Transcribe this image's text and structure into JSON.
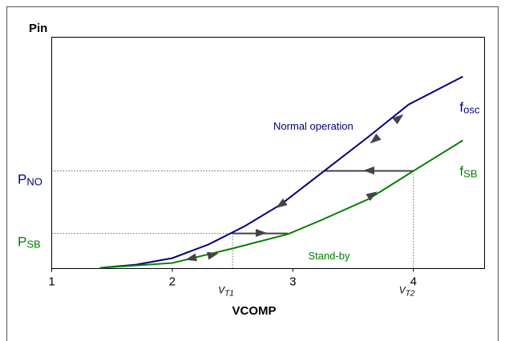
{
  "chart_data": {
    "type": "line",
    "ylabel": "Pin",
    "xlabel": "VCOMP",
    "xlim": [
      1,
      4.59
    ],
    "xticks": [
      1,
      2,
      3,
      4
    ],
    "ylim": [
      0,
      10
    ],
    "series": [
      {
        "name": "f",
        "sub": "osc",
        "color": "#000080",
        "x": [
          1.4,
          1.7,
          2.0,
          2.3,
          2.6,
          2.9,
          3.26,
          3.63,
          3.96,
          4.41
        ],
        "values": [
          0.03,
          0.17,
          0.45,
          1.04,
          1.83,
          2.77,
          4.22,
          5.71,
          7.09,
          8.3
        ]
      },
      {
        "name": "f",
        "sub": "SB",
        "color": "#008000",
        "x": [
          1.4,
          2.0,
          2.5,
          2.96,
          3.23,
          3.63,
          4.0,
          4.41
        ],
        "values": [
          0.03,
          0.24,
          0.87,
          1.49,
          2.08,
          3.01,
          4.22,
          5.54
        ]
      }
    ],
    "levels": [
      {
        "label": "P",
        "sub": "NO",
        "value": 4.22,
        "color": "#000080"
      },
      {
        "label": "P",
        "sub": "SB",
        "value": 1.52,
        "color": "#008000"
      }
    ],
    "thresholds": [
      {
        "label": "V",
        "sub": "T2",
        "value": 4.0
      },
      {
        "label": "V",
        "sub": "T1",
        "value": 2.5
      }
    ],
    "transitions": [
      {
        "x": [
          3.26,
          4.0
        ],
        "y": 4.22
      },
      {
        "x": [
          2.5,
          2.96
        ],
        "y": 1.52
      }
    ],
    "annotations": [
      {
        "text": "Normal operation",
        "x": 3.17,
        "y": 6.12,
        "color": "#000080"
      },
      {
        "text": "Stand-by",
        "x": 3.3,
        "y": 0.52,
        "color": "#008000"
      }
    ]
  }
}
